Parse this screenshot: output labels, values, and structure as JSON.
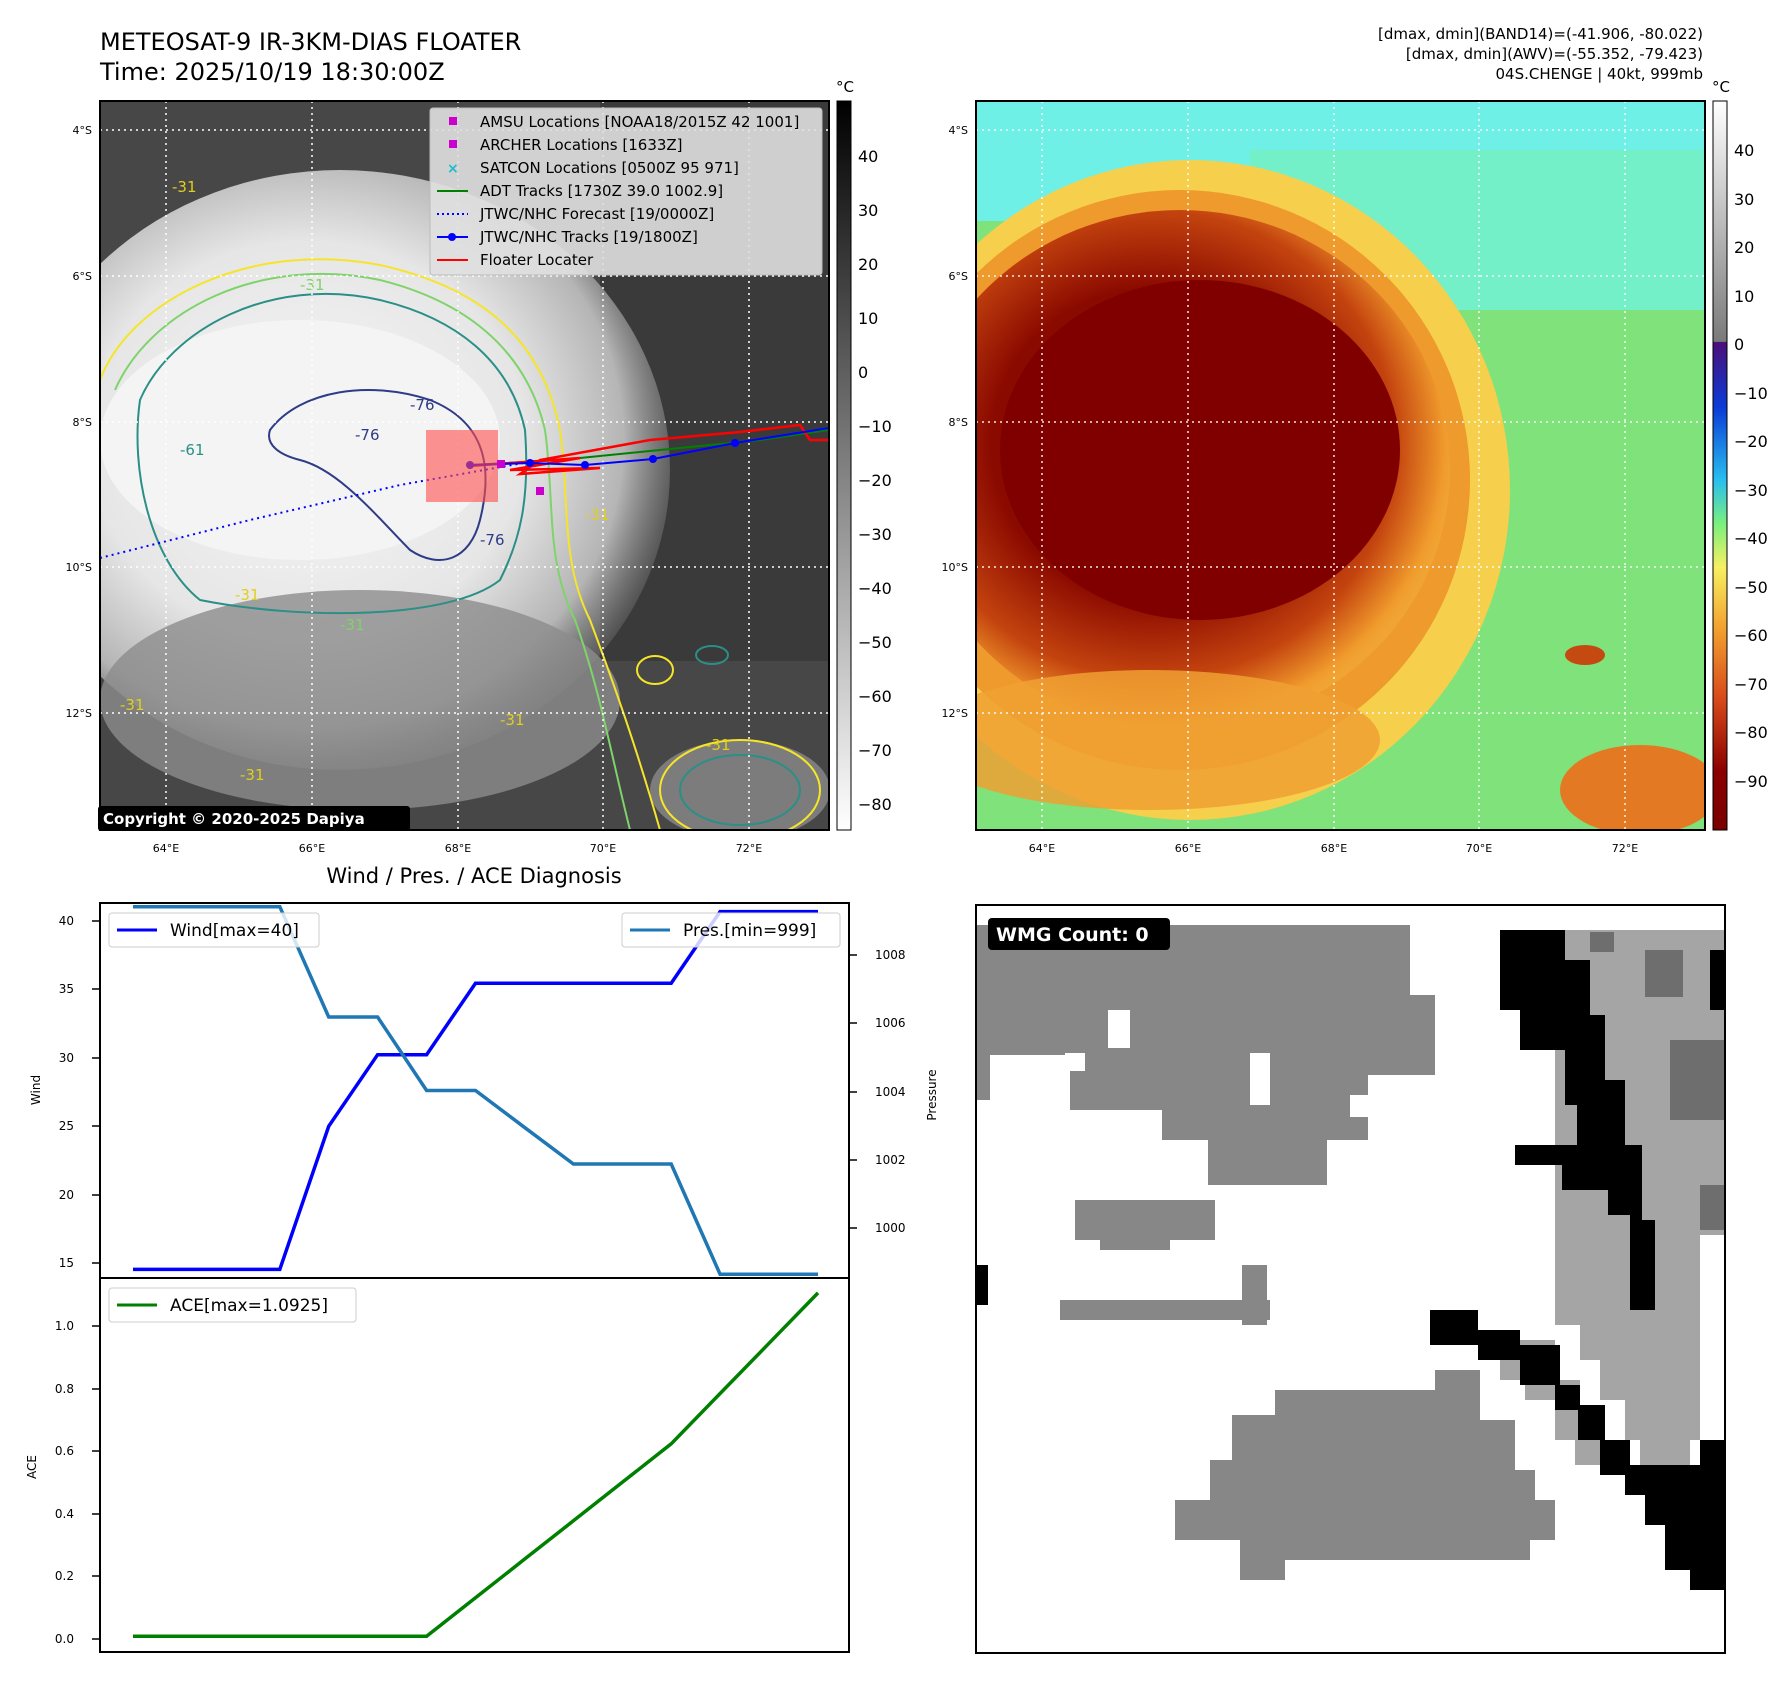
{
  "header": {
    "title_line1": "METEOSAT-9 IR-3KM-DIAS FLOATER",
    "title_line2": "Time: 2025/10/19 18:30:00Z",
    "info_line1": "[dmax, dmin](BAND14)=(-41.906, -80.022)",
    "info_line2": "[dmax, dmin](AWV)=(-55.352, -79.423)",
    "info_line3": "04S.CHENGE | 40kt, 999mb"
  },
  "colors": {
    "wind": "#0000ff",
    "pressure": "#1f77b4",
    "ace": "#008000",
    "floater": "#ff0000",
    "adt": "#008000",
    "amsu": "#cc00cc",
    "satcon": "#17becf"
  },
  "ir_map": {
    "lon_ticks": [
      "64°E",
      "66°E",
      "68°E",
      "70°E",
      "72°E"
    ],
    "lat_ticks": [
      "4°S",
      "6°S",
      "8°S",
      "10°S",
      "12°S"
    ],
    "colorbar_unit": "°C",
    "colorbar_ticks": [
      "40",
      "30",
      "20",
      "10",
      "0",
      "−10",
      "−20",
      "−30",
      "−40",
      "−50",
      "−60",
      "−70",
      "−80"
    ],
    "copyright": "Copyright © 2020-2025 Dapiya",
    "legend": [
      {
        "label": "AMSU Locations [NOAA18/2015Z 42 1001]",
        "marker": "square",
        "color": "#cc00cc"
      },
      {
        "label": "ARCHER Locations [1633Z]",
        "marker": "square",
        "color": "#cc00cc"
      },
      {
        "label": "SATCON Locations [0500Z 95 971]",
        "marker": "x",
        "color": "#17becf"
      },
      {
        "label": "ADT Tracks [1730Z 39.0 1002.9]",
        "marker": "line",
        "color": "#008000"
      },
      {
        "label": "JTWC/NHC Forecast [19/0000Z]",
        "marker": "dotted",
        "color": "#0000ff"
      },
      {
        "label": "JTWC/NHC Tracks [19/1800Z]",
        "marker": "line-dot",
        "color": "#0000ff"
      },
      {
        "label": "Floater Locater",
        "marker": "line",
        "color": "#ff0000"
      }
    ],
    "contour_labels": [
      "-31",
      "-31",
      "-31",
      "-31",
      "-31",
      "-31",
      "-31",
      "-31",
      "-76",
      "-76",
      "-76",
      "-61",
      "-31"
    ]
  },
  "wv_map": {
    "lon_ticks": [
      "64°E",
      "66°E",
      "68°E",
      "70°E",
      "72°E"
    ],
    "lat_ticks": [
      "4°S",
      "6°S",
      "8°S",
      "10°S",
      "12°S"
    ],
    "colorbar_unit": "°C",
    "colorbar_ticks": [
      "40",
      "30",
      "20",
      "10",
      "0",
      "−10",
      "−20",
      "−30",
      "−40",
      "−50",
      "−60",
      "−70",
      "−80",
      "−90"
    ]
  },
  "diagnosis": {
    "title": "Wind / Pres. / ACE Diagnosis",
    "wind_legend": "Wind[max=40]",
    "pressure_legend": "Pres.[min=999]",
    "ace_legend": "ACE[max=1.0925]",
    "wind_ylabel": "Wind",
    "pressure_ylabel": "Pressure",
    "ace_ylabel": "ACE",
    "wind_ticks": [
      "40",
      "35",
      "30",
      "25",
      "20",
      "15"
    ],
    "pressure_ticks": [
      "1008",
      "1006",
      "1004",
      "1002",
      "1000"
    ],
    "ace_ticks": [
      "1.0",
      "0.8",
      "0.6",
      "0.4",
      "0.2",
      "0.0"
    ]
  },
  "wmg": {
    "label": "WMG Count: 0"
  },
  "chart_data": [
    {
      "type": "line",
      "title": "Wind / Pres. / ACE Diagnosis",
      "x": [
        0,
        1,
        2,
        3,
        4,
        5,
        6,
        7,
        8,
        9,
        10,
        11,
        12,
        13,
        14
      ],
      "ylabel": "Wind",
      "ylim": [
        14.4,
        40.6
      ],
      "series": [
        {
          "name": "Wind[max=40]",
          "values": [
            15,
            15,
            15,
            15,
            25,
            30,
            30,
            35,
            35,
            35,
            35,
            35,
            40,
            40,
            40
          ]
        }
      ]
    },
    {
      "type": "line",
      "ylabel": "Pressure",
      "ylim": [
        998.9,
        1009.1
      ],
      "series": [
        {
          "name": "Pres.[min=999]",
          "values": [
            1009,
            1009,
            1009,
            1009,
            1006,
            1006,
            1004,
            1004,
            1003,
            1002,
            1002,
            1002,
            999,
            999,
            999
          ]
        }
      ]
    },
    {
      "type": "line",
      "ylabel": "ACE",
      "ylim": [
        -0.05,
        1.14
      ],
      "series": [
        {
          "name": "ACE[max=1.0925]",
          "values": [
            0,
            0,
            0,
            0,
            0,
            0,
            0,
            0.1225,
            0.245,
            0.3675,
            0.49,
            0.6125,
            0.7725,
            0.9325,
            1.0925
          ]
        }
      ]
    }
  ]
}
